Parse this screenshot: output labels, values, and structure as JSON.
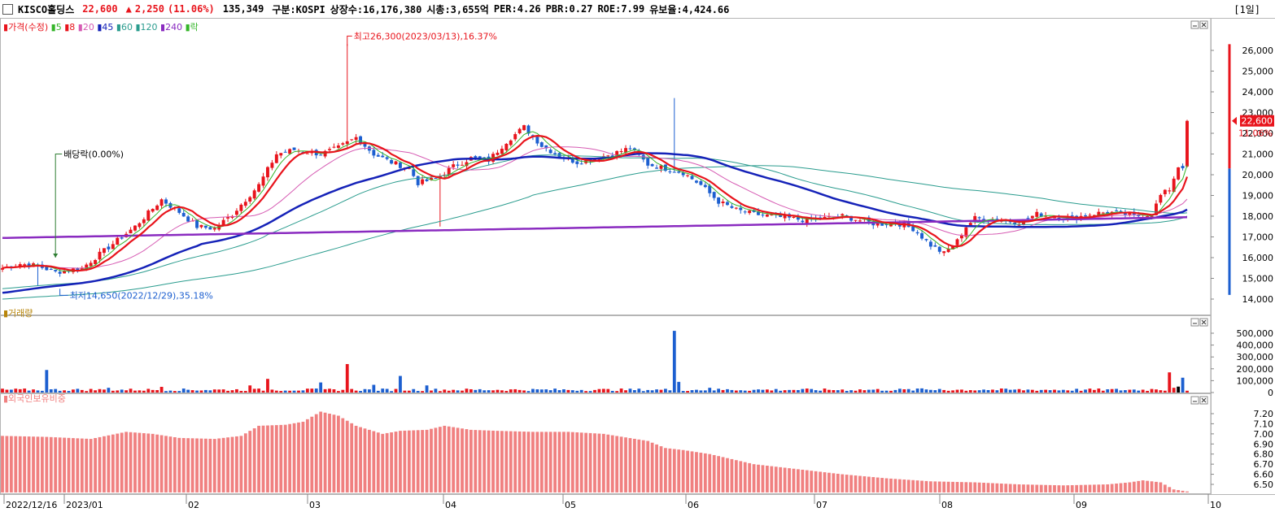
{
  "header": {
    "name": "KISCO홀딩스",
    "price": "22,600",
    "change_arrow": "▲",
    "change": "2,250",
    "change_pct": "(11.06%)",
    "volume": "135,349",
    "market": "구분:KOSPI",
    "shares": "상장수:16,176,380",
    "mcap": "시총:3,655억",
    "per": "PER:4.26",
    "pbr": "PBR:0.27",
    "roe": "ROE:7.99",
    "retention": "유보율:4,424.66",
    "period": "[1일]"
  },
  "colors": {
    "up": "#e8141c",
    "down": "#1c5fd0",
    "ma5": "#35b52a",
    "ma8": "#e8141c",
    "ma20": "#d65bb3",
    "ma45": "#1522b8",
    "ma60": "#2a9c8e",
    "ma120": "#2a9c8e",
    "ma240": "#8a2bc0",
    "foreign": "#f08080"
  },
  "chart_data": [
    {
      "type": "candlestick",
      "title": "가격(수정)",
      "legend": [
        {
          "label": "가격(수정)",
          "color": "#e8141c"
        },
        {
          "label": "5",
          "color": "#35b52a"
        },
        {
          "label": "8",
          "color": "#e8141c"
        },
        {
          "label": "20",
          "color": "#d65bb3"
        },
        {
          "label": "45",
          "color": "#1522b8"
        },
        {
          "label": "60",
          "color": "#2a9c8e"
        },
        {
          "label": "120",
          "color": "#2a9c8e"
        },
        {
          "label": "240",
          "color": "#8a2bc0"
        },
        {
          "label": "락",
          "color": "#35b52a"
        }
      ],
      "x_ticks": [
        "2022/12/16",
        "2023/01",
        "02",
        "03",
        "04",
        "05",
        "06",
        "07",
        "08",
        "09",
        "10"
      ],
      "y_ticks": [
        "26,000",
        "25,000",
        "24,000",
        "23,000",
        "22,000",
        "21,000",
        "20,000",
        "19,000",
        "18,000",
        "17,000",
        "16,000",
        "15,000",
        "14,000"
      ],
      "ylim": [
        13600,
        26700
      ],
      "current_price": "22,600",
      "current_pct": "11.06%",
      "annotations": {
        "high": "최고26,300(2023/03/13),16.37%",
        "low": "최저14,650(2022/12/29),35.18%",
        "dividend": "배당락(0.00%)"
      },
      "anchors": [
        [
          0,
          15500
        ],
        [
          4,
          15700
        ],
        [
          8,
          15600
        ],
        [
          12,
          15300
        ],
        [
          18,
          15500
        ],
        [
          24,
          16500
        ],
        [
          30,
          17500
        ],
        [
          36,
          18800
        ],
        [
          40,
          18200
        ],
        [
          44,
          17500
        ],
        [
          48,
          17400
        ],
        [
          52,
          18100
        ],
        [
          58,
          19500
        ],
        [
          62,
          21000
        ],
        [
          66,
          21200
        ],
        [
          72,
          21000
        ],
        [
          76,
          21300
        ],
        [
          80,
          21800
        ],
        [
          84,
          21000
        ],
        [
          88,
          20600
        ],
        [
          92,
          20300
        ],
        [
          94,
          19600
        ],
        [
          98,
          19800
        ],
        [
          102,
          20400
        ],
        [
          106,
          20800
        ],
        [
          110,
          20700
        ],
        [
          114,
          21600
        ],
        [
          118,
          22300
        ],
        [
          122,
          21400
        ],
        [
          126,
          20900
        ],
        [
          130,
          20600
        ],
        [
          134,
          20800
        ],
        [
          138,
          21000
        ],
        [
          142,
          21300
        ],
        [
          146,
          20500
        ],
        [
          150,
          20300
        ],
        [
          154,
          20100
        ],
        [
          158,
          19500
        ],
        [
          162,
          18700
        ],
        [
          166,
          18300
        ],
        [
          170,
          18100
        ],
        [
          174,
          18000
        ],
        [
          178,
          17900
        ],
        [
          182,
          17800
        ],
        [
          186,
          17900
        ],
        [
          190,
          18000
        ],
        [
          194,
          17800
        ],
        [
          198,
          17600
        ],
        [
          202,
          17700
        ],
        [
          206,
          17400
        ],
        [
          210,
          16600
        ],
        [
          213,
          16200
        ],
        [
          216,
          16800
        ],
        [
          218,
          17500
        ],
        [
          220,
          17900
        ],
        [
          226,
          17800
        ],
        [
          230,
          17700
        ],
        [
          234,
          18100
        ],
        [
          238,
          18000
        ],
        [
          242,
          17900
        ],
        [
          246,
          18100
        ],
        [
          250,
          18200
        ],
        [
          254,
          18100
        ],
        [
          256,
          18000
        ],
        [
          260,
          18100
        ],
        [
          262,
          19000
        ],
        [
          264,
          19300
        ],
        [
          266,
          20400
        ],
        [
          267,
          20400
        ],
        [
          268,
          22600
        ]
      ],
      "ma_params": [
        5,
        8,
        20,
        45,
        60,
        120,
        240
      ],
      "ma240_line": [
        16950,
        17950
      ]
    },
    {
      "type": "bar",
      "title": "거래량",
      "y_ticks": [
        "500,000",
        "400,000",
        "300,000",
        "200,000",
        "100,000",
        "0"
      ],
      "ylim": [
        0,
        560000
      ],
      "spikes": [
        [
          10,
          190000
        ],
        [
          24,
          40000
        ],
        [
          36,
          48000
        ],
        [
          56,
          60000
        ],
        [
          60,
          115000
        ],
        [
          72,
          85000
        ],
        [
          78,
          240000
        ],
        [
          84,
          65000
        ],
        [
          90,
          140000
        ],
        [
          96,
          60000
        ],
        [
          152,
          520000
        ],
        [
          153,
          90000
        ],
        [
          160,
          40000
        ],
        [
          208,
          35000
        ],
        [
          212,
          30000
        ],
        [
          222,
          25000
        ],
        [
          260,
          30000
        ],
        [
          264,
          170000
        ],
        [
          265,
          40000
        ],
        [
          266,
          50000
        ],
        [
          267,
          125000
        ]
      ]
    },
    {
      "type": "bar",
      "title": "외국인보유비중",
      "y_ticks": [
        "7.20",
        "7.10",
        "7.00",
        "6.90",
        "6.80",
        "6.70",
        "6.60",
        "6.50"
      ],
      "ylim": [
        6.42,
        7.28
      ],
      "anchors": [
        [
          0,
          6.98
        ],
        [
          10,
          6.97
        ],
        [
          20,
          6.95
        ],
        [
          28,
          7.02
        ],
        [
          34,
          7.0
        ],
        [
          40,
          6.96
        ],
        [
          48,
          6.95
        ],
        [
          54,
          6.98
        ],
        [
          58,
          7.08
        ],
        [
          64,
          7.09
        ],
        [
          68,
          7.12
        ],
        [
          72,
          7.22
        ],
        [
          76,
          7.18
        ],
        [
          80,
          7.08
        ],
        [
          86,
          7.0
        ],
        [
          90,
          7.03
        ],
        [
          96,
          7.04
        ],
        [
          100,
          7.08
        ],
        [
          106,
          7.04
        ],
        [
          112,
          7.03
        ],
        [
          120,
          7.02
        ],
        [
          128,
          7.02
        ],
        [
          136,
          7.0
        ],
        [
          146,
          6.93
        ],
        [
          150,
          6.86
        ],
        [
          154,
          6.84
        ],
        [
          160,
          6.8
        ],
        [
          170,
          6.7
        ],
        [
          180,
          6.65
        ],
        [
          190,
          6.6
        ],
        [
          200,
          6.56
        ],
        [
          210,
          6.53
        ],
        [
          220,
          6.52
        ],
        [
          230,
          6.5
        ],
        [
          240,
          6.49
        ],
        [
          250,
          6.5
        ],
        [
          255,
          6.52
        ],
        [
          258,
          6.54
        ],
        [
          262,
          6.52
        ],
        [
          265,
          6.45
        ],
        [
          268,
          6.43
        ]
      ]
    }
  ]
}
